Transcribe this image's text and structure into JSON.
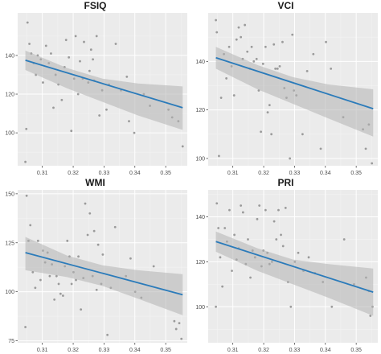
{
  "colors": {
    "panel_bg": "#ebebeb",
    "grid_major": "#ffffff",
    "grid_minor": "#f4f4f4",
    "points": "#8c8c8c",
    "fit_line": "#2b7bba",
    "ribbon": "#b3b3b3",
    "tick_text": "#4d4d4d"
  },
  "chart_data": [
    {
      "type": "scatter",
      "title": "FSIQ",
      "xlim": [
        0.302,
        0.357
      ],
      "ylim": [
        83,
        162
      ],
      "x_ticks": [
        0.31,
        0.32,
        0.33,
        0.34,
        0.35
      ],
      "x_tick_labels": [
        "0.31",
        "0.32",
        "0.33",
        "0.34",
        "0.35"
      ],
      "y_ticks": [
        100,
        120,
        140
      ],
      "y_tick_labels": [
        "100",
        "120",
        "140"
      ],
      "grid": true,
      "points": [
        [
          0.3045,
          85
        ],
        [
          0.3048,
          102
        ],
        [
          0.3052,
          157
        ],
        [
          0.3058,
          146
        ],
        [
          0.3064,
          141
        ],
        [
          0.3072,
          136
        ],
        [
          0.3079,
          130
        ],
        [
          0.3085,
          140
        ],
        [
          0.3095,
          138
        ],
        [
          0.3102,
          126
        ],
        [
          0.3112,
          145
        ],
        [
          0.3121,
          136
        ],
        [
          0.3128,
          141
        ],
        [
          0.3136,
          113
        ],
        [
          0.3143,
          130
        ],
        [
          0.3152,
          125
        ],
        [
          0.3163,
          117
        ],
        [
          0.3172,
          134
        ],
        [
          0.3177,
          148
        ],
        [
          0.3186,
          139
        ],
        [
          0.3194,
          101
        ],
        [
          0.3203,
          128
        ],
        [
          0.3208,
          150
        ],
        [
          0.3216,
          120
        ],
        [
          0.3222,
          137
        ],
        [
          0.3231,
          128
        ],
        [
          0.3235,
          147
        ],
        [
          0.3249,
          126
        ],
        [
          0.3253,
          132
        ],
        [
          0.3258,
          143
        ],
        [
          0.3264,
          138
        ],
        [
          0.3268,
          127
        ],
        [
          0.3276,
          150
        ],
        [
          0.3285,
          109
        ],
        [
          0.3294,
          122
        ],
        [
          0.3308,
          112
        ],
        [
          0.3316,
          125
        ],
        [
          0.3338,
          146
        ],
        [
          0.3355,
          122
        ],
        [
          0.3374,
          129
        ],
        [
          0.3381,
          106
        ],
        [
          0.3398,
          100
        ],
        [
          0.3429,
          120
        ],
        [
          0.3449,
          114
        ],
        [
          0.3509,
          112
        ],
        [
          0.3521,
          108
        ],
        [
          0.3541,
          106
        ],
        [
          0.3555,
          93
        ]
      ],
      "fit": {
        "x": [
          0.3045,
          0.3555
        ],
        "y": [
          137.5,
          113
        ]
      },
      "ribbon": {
        "x": [
          0.3045,
          0.318,
          0.3295,
          0.341,
          0.3555
        ],
        "upper": [
          142.5,
          133.5,
          128,
          125.5,
          124
        ],
        "lower": [
          132.5,
          123,
          116,
          109,
          101.5
        ]
      }
    },
    {
      "type": "scatter",
      "title": "VCI",
      "xlim": [
        0.302,
        0.357
      ],
      "ylim": [
        97,
        160
      ],
      "x_ticks": [
        0.31,
        0.32,
        0.33,
        0.34,
        0.35
      ],
      "x_tick_labels": [
        "0.31",
        "0.32",
        "0.33",
        "0.34",
        "0.35"
      ],
      "y_ticks": [
        100,
        120,
        140
      ],
      "y_tick_labels": [
        "100",
        "120",
        "140"
      ],
      "grid": true,
      "points": [
        [
          0.3045,
          157
        ],
        [
          0.3048,
          152
        ],
        [
          0.3055,
          101
        ],
        [
          0.3062,
          125
        ],
        [
          0.3071,
          143
        ],
        [
          0.3079,
          133
        ],
        [
          0.3088,
          146
        ],
        [
          0.3096,
          138
        ],
        [
          0.3104,
          126
        ],
        [
          0.3112,
          149
        ],
        [
          0.3119,
          154
        ],
        [
          0.3126,
          150
        ],
        [
          0.3132,
          141
        ],
        [
          0.3139,
          155
        ],
        [
          0.3147,
          144
        ],
        [
          0.3155,
          137
        ],
        [
          0.3161,
          146
        ],
        [
          0.3168,
          140
        ],
        [
          0.3177,
          141
        ],
        [
          0.3184,
          128
        ],
        [
          0.3191,
          111
        ],
        [
          0.3198,
          139
        ],
        [
          0.3206,
          146
        ],
        [
          0.3213,
          119
        ],
        [
          0.3219,
          122
        ],
        [
          0.3225,
          110
        ],
        [
          0.3233,
          147
        ],
        [
          0.3238,
          137
        ],
        [
          0.3245,
          137
        ],
        [
          0.3252,
          138
        ],
        [
          0.3261,
          148
        ],
        [
          0.3267,
          129
        ],
        [
          0.3274,
          125
        ],
        [
          0.3285,
          100
        ],
        [
          0.3293,
          151
        ],
        [
          0.3298,
          128
        ],
        [
          0.3306,
          126
        ],
        [
          0.3326,
          110
        ],
        [
          0.3341,
          136
        ],
        [
          0.3361,
          143
        ],
        [
          0.3385,
          104
        ],
        [
          0.3402,
          148
        ],
        [
          0.3418,
          137
        ],
        [
          0.3458,
          117
        ],
        [
          0.3522,
          112
        ],
        [
          0.3531,
          104
        ],
        [
          0.3541,
          114
        ],
        [
          0.3551,
          98
        ]
      ],
      "fit": {
        "x": [
          0.3045,
          0.3555
        ],
        "y": [
          141.5,
          120.5
        ]
      },
      "ribbon": {
        "x": [
          0.3045,
          0.318,
          0.3295,
          0.341,
          0.3555
        ],
        "upper": [
          146,
          138.5,
          133.5,
          130.5,
          128.5
        ],
        "lower": [
          137,
          128.5,
          122.5,
          116.5,
          109
        ]
      }
    },
    {
      "type": "scatter",
      "title": "WMI",
      "xlim": [
        0.302,
        0.357
      ],
      "ylim": [
        74,
        152
      ],
      "x_ticks": [
        0.31,
        0.32,
        0.33,
        0.34,
        0.35
      ],
      "x_tick_labels": [
        "0.31",
        "0.32",
        "0.33",
        "0.34",
        "0.35"
      ],
      "y_ticks": [
        75,
        100,
        125,
        150
      ],
      "y_tick_labels": [
        "75",
        "100",
        "125",
        "150"
      ],
      "grid": true,
      "points": [
        [
          0.3045,
          82
        ],
        [
          0.3049,
          149
        ],
        [
          0.3055,
          126
        ],
        [
          0.3061,
          134
        ],
        [
          0.3069,
          110
        ],
        [
          0.3077,
          102
        ],
        [
          0.3086,
          126
        ],
        [
          0.3094,
          106
        ],
        [
          0.3102,
          121
        ],
        [
          0.3109,
          115
        ],
        [
          0.3117,
          120
        ],
        [
          0.3124,
          108
        ],
        [
          0.3131,
          114
        ],
        [
          0.3139,
          96
        ],
        [
          0.3146,
          108
        ],
        [
          0.3153,
          104
        ],
        [
          0.3159,
          99
        ],
        [
          0.3167,
          98
        ],
        [
          0.3173,
          113
        ],
        [
          0.3181,
          126
        ],
        [
          0.3188,
          118
        ],
        [
          0.3195,
          104
        ],
        [
          0.3201,
          110
        ],
        [
          0.3209,
          106
        ],
        [
          0.3217,
          118
        ],
        [
          0.3225,
          91
        ],
        [
          0.3233,
          107
        ],
        [
          0.3239,
          145
        ],
        [
          0.3247,
          129
        ],
        [
          0.3254,
          140
        ],
        [
          0.3263,
          108
        ],
        [
          0.3268,
          131
        ],
        [
          0.3276,
          101
        ],
        [
          0.3281,
          124
        ],
        [
          0.3291,
          104
        ],
        [
          0.3296,
          119
        ],
        [
          0.3311,
          78
        ],
        [
          0.3322,
          102
        ],
        [
          0.3336,
          133
        ],
        [
          0.3371,
          108
        ],
        [
          0.3386,
          117
        ],
        [
          0.3401,
          100
        ],
        [
          0.3421,
          97
        ],
        [
          0.3461,
          113
        ],
        [
          0.3528,
          85
        ],
        [
          0.3534,
          81
        ],
        [
          0.3544,
          84
        ],
        [
          0.3551,
          76
        ]
      ],
      "fit": {
        "x": [
          0.3045,
          0.3555
        ],
        "y": [
          120,
          98.5
        ]
      },
      "ribbon": {
        "x": [
          0.3045,
          0.318,
          0.3295,
          0.341,
          0.3555
        ],
        "upper": [
          128,
          118.5,
          113.5,
          111,
          109
        ],
        "lower": [
          111,
          107.5,
          103,
          96.5,
          88
        ]
      }
    },
    {
      "type": "scatter",
      "title": "PRI",
      "xlim": [
        0.302,
        0.357
      ],
      "ylim": [
        84,
        152
      ],
      "x_ticks": [
        0.31,
        0.32,
        0.33,
        0.34,
        0.35
      ],
      "x_tick_labels": [
        "0.31",
        "0.32",
        "0.33",
        "0.34",
        "0.35"
      ],
      "y_ticks": [
        100,
        120,
        140
      ],
      "y_tick_labels": [
        "100",
        "120",
        "140"
      ],
      "grid": true,
      "points": [
        [
          0.3045,
          100
        ],
        [
          0.3048,
          146
        ],
        [
          0.3053,
          135
        ],
        [
          0.3059,
          122
        ],
        [
          0.3066,
          109
        ],
        [
          0.3074,
          135
        ],
        [
          0.3081,
          129
        ],
        [
          0.3089,
          143
        ],
        [
          0.3097,
          116
        ],
        [
          0.3105,
          132
        ],
        [
          0.3112,
          121
        ],
        [
          0.3119,
          126
        ],
        [
          0.3126,
          145
        ],
        [
          0.3133,
          142
        ],
        [
          0.3142,
          119
        ],
        [
          0.3149,
          130
        ],
        [
          0.3157,
          113
        ],
        [
          0.3164,
          125
        ],
        [
          0.3172,
          122
        ],
        [
          0.3179,
          139
        ],
        [
          0.3186,
          145
        ],
        [
          0.3193,
          118
        ],
        [
          0.3199,
          125
        ],
        [
          0.3206,
          143
        ],
        [
          0.3212,
          124
        ],
        [
          0.3219,
          119
        ],
        [
          0.3227,
          120
        ],
        [
          0.3234,
          138
        ],
        [
          0.3241,
          130
        ],
        [
          0.3248,
          143
        ],
        [
          0.3256,
          132
        ],
        [
          0.3263,
          127
        ],
        [
          0.3271,
          144
        ],
        [
          0.3279,
          111
        ],
        [
          0.3288,
          100
        ],
        [
          0.3301,
          120
        ],
        [
          0.3312,
          124
        ],
        [
          0.3329,
          116
        ],
        [
          0.3346,
          122
        ],
        [
          0.3366,
          115
        ],
        [
          0.3392,
          111
        ],
        [
          0.3421,
          100
        ],
        [
          0.3461,
          130
        ],
        [
          0.3493,
          110
        ],
        [
          0.3532,
          113
        ],
        [
          0.3541,
          107
        ],
        [
          0.3546,
          96
        ],
        [
          0.3553,
          100
        ]
      ],
      "fit": {
        "x": [
          0.3045,
          0.3555
        ],
        "y": [
          129,
          106.5
        ]
      },
      "ribbon": {
        "x": [
          0.3045,
          0.318,
          0.3295,
          0.341,
          0.3555
        ],
        "upper": [
          133.5,
          126,
          121,
          119,
          117
        ],
        "lower": [
          124.5,
          116,
          110,
          104,
          96
        ]
      }
    }
  ]
}
